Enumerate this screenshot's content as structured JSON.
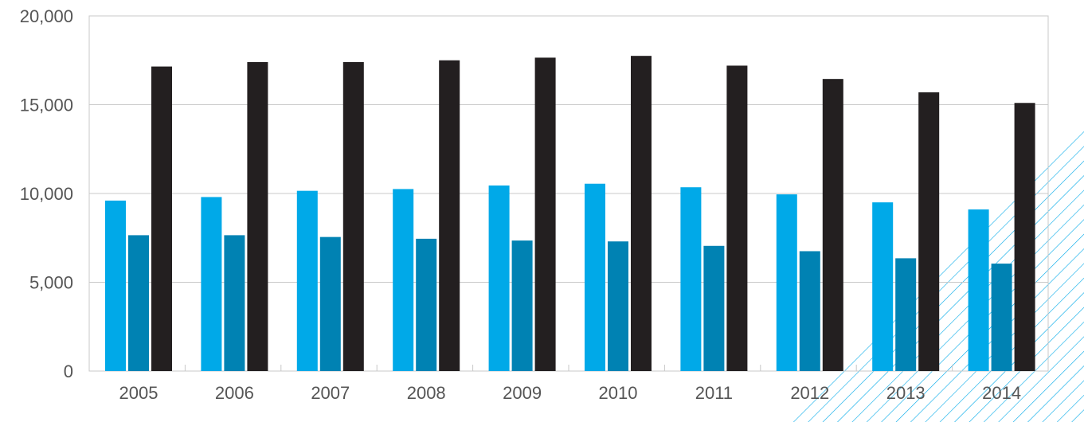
{
  "chart_data": {
    "type": "bar",
    "categories": [
      "2005",
      "2006",
      "2007",
      "2008",
      "2009",
      "2010",
      "2011",
      "2012",
      "2013",
      "2014"
    ],
    "series": [
      {
        "values": [
          9600,
          9800,
          10150,
          10250,
          10450,
          10550,
          10350,
          9950,
          9500,
          9100
        ],
        "color": "#00a9e8"
      },
      {
        "values": [
          7650,
          7650,
          7550,
          7450,
          7350,
          7300,
          7050,
          6750,
          6350,
          6050
        ],
        "color": "#0082b3"
      },
      {
        "values": [
          17150,
          17400,
          17400,
          17500,
          17650,
          17750,
          17200,
          16450,
          15700,
          15100
        ],
        "color": "#231f20"
      }
    ],
    "ylim": [
      0,
      20000
    ],
    "yticks": [
      0,
      5000,
      10000,
      15000,
      20000
    ],
    "ytick_labels": [
      "0",
      "5,000",
      "10,000",
      "15,000",
      "20,000"
    ],
    "grid": true,
    "decoration": {
      "pattern": "diagonal-hatch",
      "color": "#00a9e8"
    }
  }
}
